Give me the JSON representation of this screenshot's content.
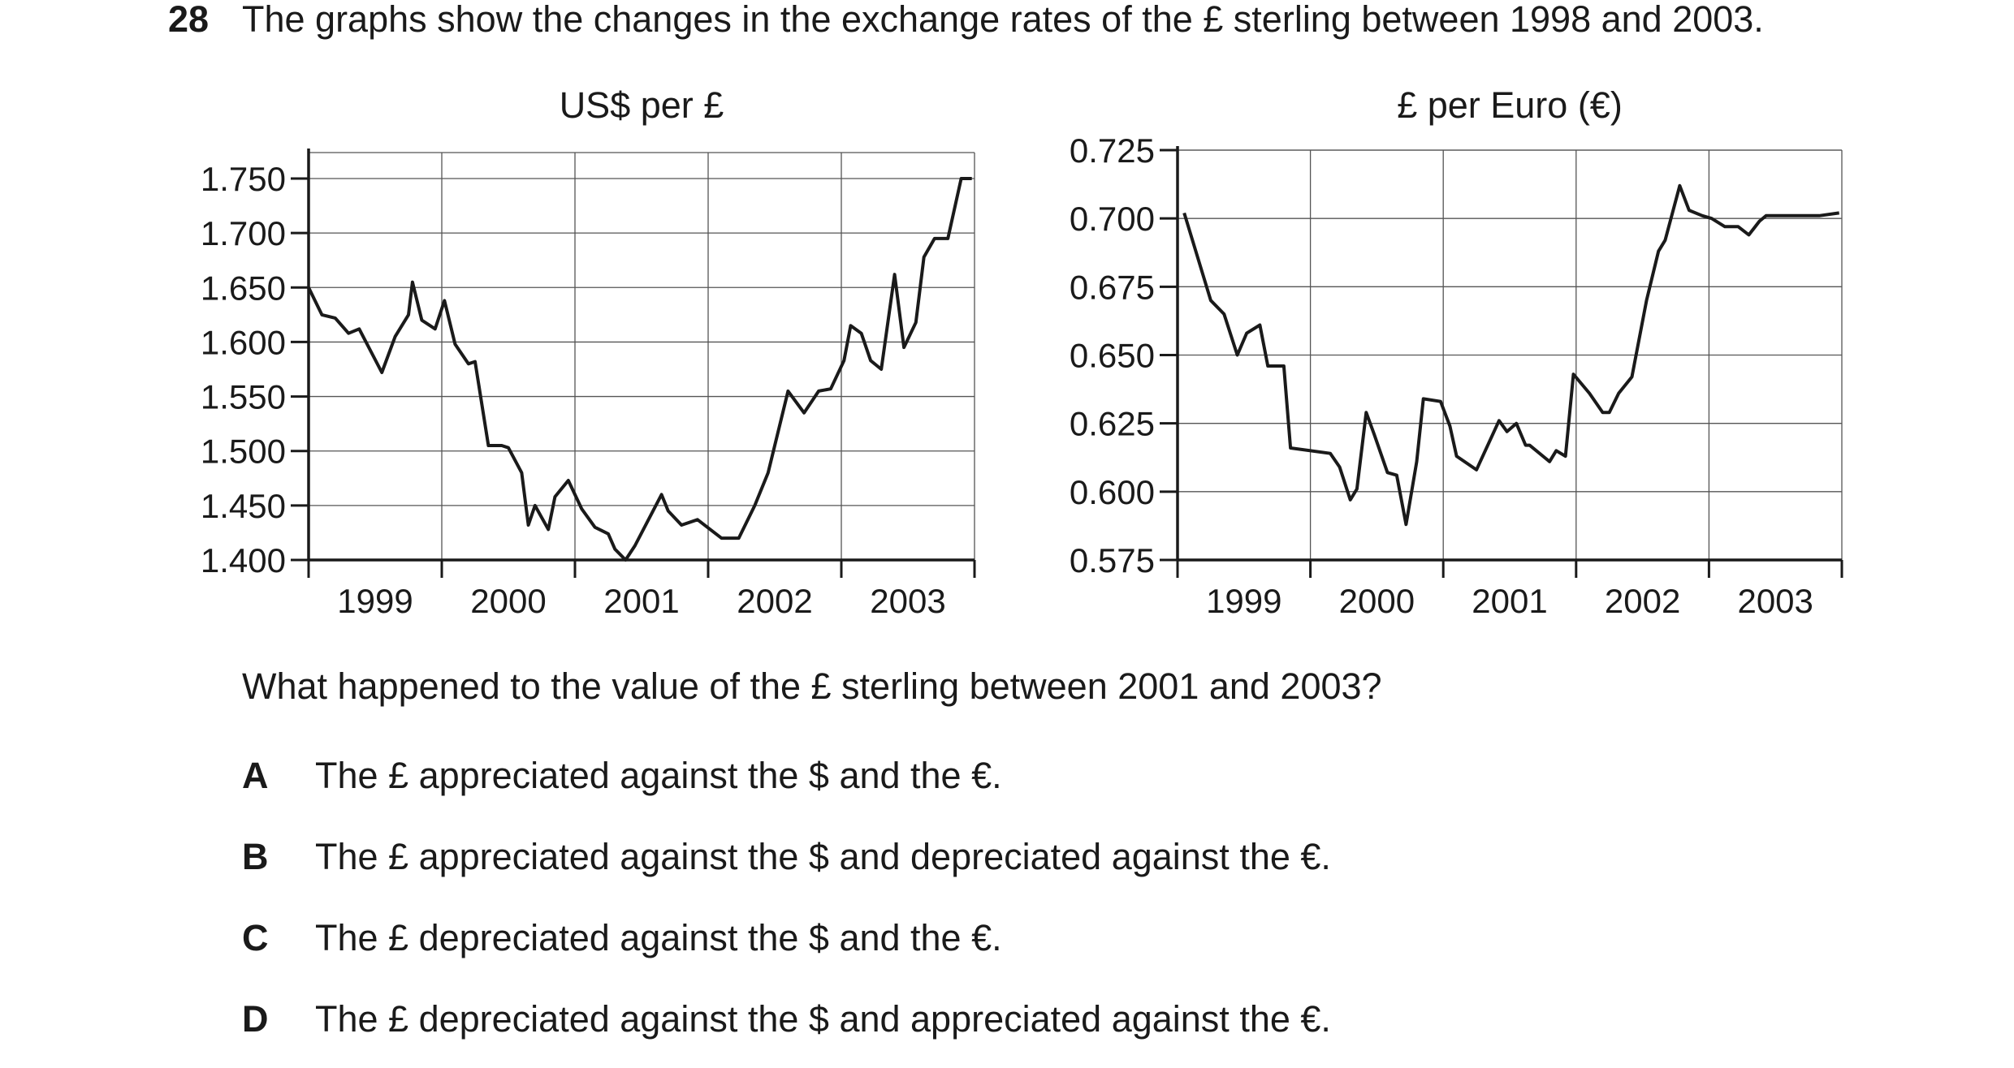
{
  "question": {
    "number": "28",
    "text": "The graphs show the changes in the exchange rates of the £ sterling between 1998 and 2003.",
    "sub_question": "What happened to the value of the £ sterling between 2001 and 2003?",
    "options": [
      {
        "letter": "A",
        "text": "The £ appreciated against the $ and the €."
      },
      {
        "letter": "B",
        "text": "The £ appreciated against the $ and depreciated against the €."
      },
      {
        "letter": "C",
        "text": "The £ depreciated against the $ and the €."
      },
      {
        "letter": "D",
        "text": "The £ depreciated against the $ and appreciated against the €."
      }
    ]
  },
  "chart_data": [
    {
      "type": "line",
      "title": "US$ per £",
      "xlabel": "",
      "ylabel": "",
      "x_tick_labels": [
        "1999",
        "2000",
        "2001",
        "2002",
        "2003"
      ],
      "y_tick_labels": [
        "1.750",
        "1.700",
        "1.650",
        "1.600",
        "1.550",
        "1.500",
        "1.450",
        "1.400"
      ],
      "ylim": [
        1.4,
        1.76
      ],
      "xlim": [
        1998.5,
        2003.5
      ],
      "grid": true,
      "line_color": "#1a1a1a",
      "series": [
        {
          "x": [
            1998.5,
            1998.6,
            1998.7,
            1998.8,
            1998.88,
            1999.05,
            1999.15,
            1999.25,
            1999.28,
            1999.35,
            1999.45,
            1999.52,
            1999.6,
            1999.7,
            1999.75,
            1999.85,
            1999.95,
            2000.0,
            2000.1,
            2000.15,
            2000.2,
            2000.3,
            2000.35,
            2000.45,
            2000.55,
            2000.65,
            2000.75,
            2000.8,
            2000.88,
            2000.95,
            2001.15,
            2001.2,
            2001.3,
            2001.42,
            2001.6,
            2001.73,
            2001.85,
            2001.95,
            2002.1,
            2002.22,
            2002.33,
            2002.42,
            2002.52,
            2002.57,
            2002.65,
            2002.72,
            2002.8,
            2002.9,
            2002.97,
            2003.06,
            2003.12,
            2003.2,
            2003.3,
            2003.4,
            2003.48
          ],
          "y": [
            1.65,
            1.625,
            1.622,
            1.608,
            1.612,
            1.572,
            1.605,
            1.625,
            1.655,
            1.62,
            1.612,
            1.638,
            1.598,
            1.58,
            1.582,
            1.505,
            1.505,
            1.503,
            1.48,
            1.432,
            1.45,
            1.428,
            1.458,
            1.473,
            1.447,
            1.43,
            1.424,
            1.41,
            1.4,
            1.413,
            1.46,
            1.445,
            1.432,
            1.437,
            1.42,
            1.42,
            1.45,
            1.48,
            1.555,
            1.535,
            1.555,
            1.557,
            1.583,
            1.615,
            1.608,
            1.583,
            1.575,
            1.662,
            1.595,
            1.618,
            1.678,
            1.695,
            1.695,
            1.75,
            1.75
          ]
        }
      ]
    },
    {
      "type": "line",
      "title": "£ per Euro (€)",
      "xlabel": "",
      "ylabel": "",
      "x_tick_labels": [
        "1999",
        "2000",
        "2001",
        "2002",
        "2003"
      ],
      "y_tick_labels": [
        "0.725",
        "0.700",
        "0.675",
        "0.650",
        "0.625",
        "0.600",
        "0.575"
      ],
      "ylim": [
        0.575,
        0.725
      ],
      "xlim": [
        1998.5,
        2003.5
      ],
      "grid": true,
      "line_color": "#1a1a1a",
      "series": [
        {
          "x": [
            1998.55,
            1998.75,
            1998.85,
            1998.95,
            1999.02,
            1999.12,
            1999.18,
            1999.3,
            1999.35,
            1999.65,
            1999.72,
            1999.8,
            1999.85,
            1999.92,
            1999.98,
            2000.08,
            2000.15,
            2000.22,
            2000.3,
            2000.35,
            2000.48,
            2000.55,
            2000.6,
            2000.75,
            2000.92,
            2000.98,
            2001.05,
            2001.12,
            2001.15,
            2001.3,
            2001.35,
            2001.42,
            2001.48,
            2001.6,
            2001.7,
            2001.75,
            2001.82,
            2001.92,
            2002.03,
            2002.12,
            2002.17,
            2002.28,
            2002.35,
            2002.45,
            2002.52,
            2002.62,
            2002.72,
            2002.8,
            2002.88,
            2002.93,
            2002.98,
            2003.1,
            2003.15,
            2003.23,
            2003.33,
            2003.48
          ],
          "y": [
            0.702,
            0.67,
            0.665,
            0.65,
            0.658,
            0.661,
            0.646,
            0.646,
            0.616,
            0.614,
            0.609,
            0.597,
            0.601,
            0.629,
            0.621,
            0.607,
            0.606,
            0.588,
            0.611,
            0.634,
            0.633,
            0.624,
            0.613,
            0.608,
            0.626,
            0.622,
            0.625,
            0.617,
            0.617,
            0.611,
            0.615,
            0.613,
            0.643,
            0.636,
            0.629,
            0.629,
            0.636,
            0.642,
            0.67,
            0.688,
            0.692,
            0.712,
            0.703,
            0.701,
            0.7,
            0.697,
            0.697,
            0.694,
            0.699,
            0.701,
            0.701,
            0.701,
            0.701,
            0.701,
            0.701,
            0.702
          ]
        }
      ]
    }
  ]
}
